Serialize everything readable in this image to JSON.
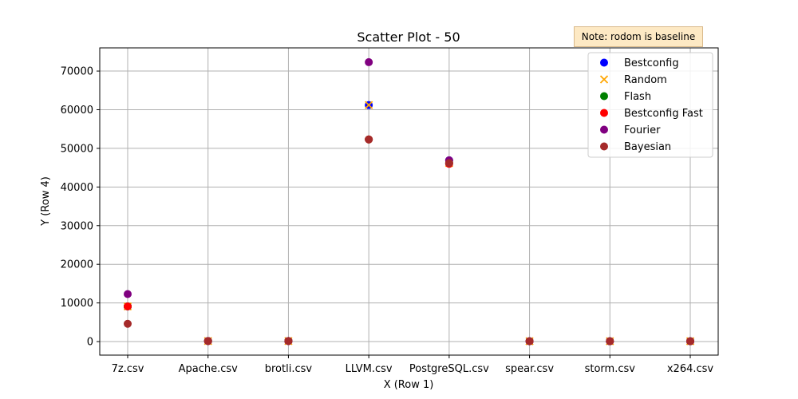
{
  "chart_data": {
    "type": "scatter",
    "title": "Scatter Plot - 50",
    "xlabel": "X (Row 1)",
    "ylabel": "Y (Row 4)",
    "categories": [
      "7z.csv",
      "Apache.csv",
      "brotli.csv",
      "LLVM.csv",
      "PostgreSQL.csv",
      "spear.csv",
      "storm.csv",
      "x264.csv"
    ],
    "ylim": [
      -3500,
      76000
    ],
    "yticks": [
      0,
      10000,
      20000,
      30000,
      40000,
      50000,
      60000,
      70000
    ],
    "grid": true,
    "legend_position": "top-right",
    "annotation": "Note: rodom is baseline",
    "series": [
      {
        "name": "Bestconfig",
        "marker": "circle",
        "color": "#0000ff",
        "values": [
          9100,
          150,
          150,
          61200,
          46900,
          100,
          100,
          100
        ]
      },
      {
        "name": "Random",
        "marker": "x",
        "color": "#ffa500",
        "values": [
          9100,
          150,
          150,
          61200,
          46200,
          100,
          100,
          100
        ]
      },
      {
        "name": "Flash",
        "marker": "circle",
        "color": "#008000",
        "values": [
          9100,
          150,
          150,
          52300,
          46200,
          100,
          100,
          100
        ]
      },
      {
        "name": "Bestconfig Fast",
        "marker": "circle",
        "color": "#ff0000",
        "values": [
          9100,
          150,
          150,
          52300,
          46000,
          100,
          100,
          100
        ]
      },
      {
        "name": "Fourier",
        "marker": "circle",
        "color": "#800080",
        "values": [
          12300,
          150,
          150,
          72300,
          46900,
          100,
          100,
          100
        ]
      },
      {
        "name": "Bayesian",
        "marker": "circle",
        "color": "#a52a2a",
        "values": [
          4600,
          150,
          150,
          52300,
          46200,
          100,
          100,
          100
        ]
      }
    ]
  }
}
